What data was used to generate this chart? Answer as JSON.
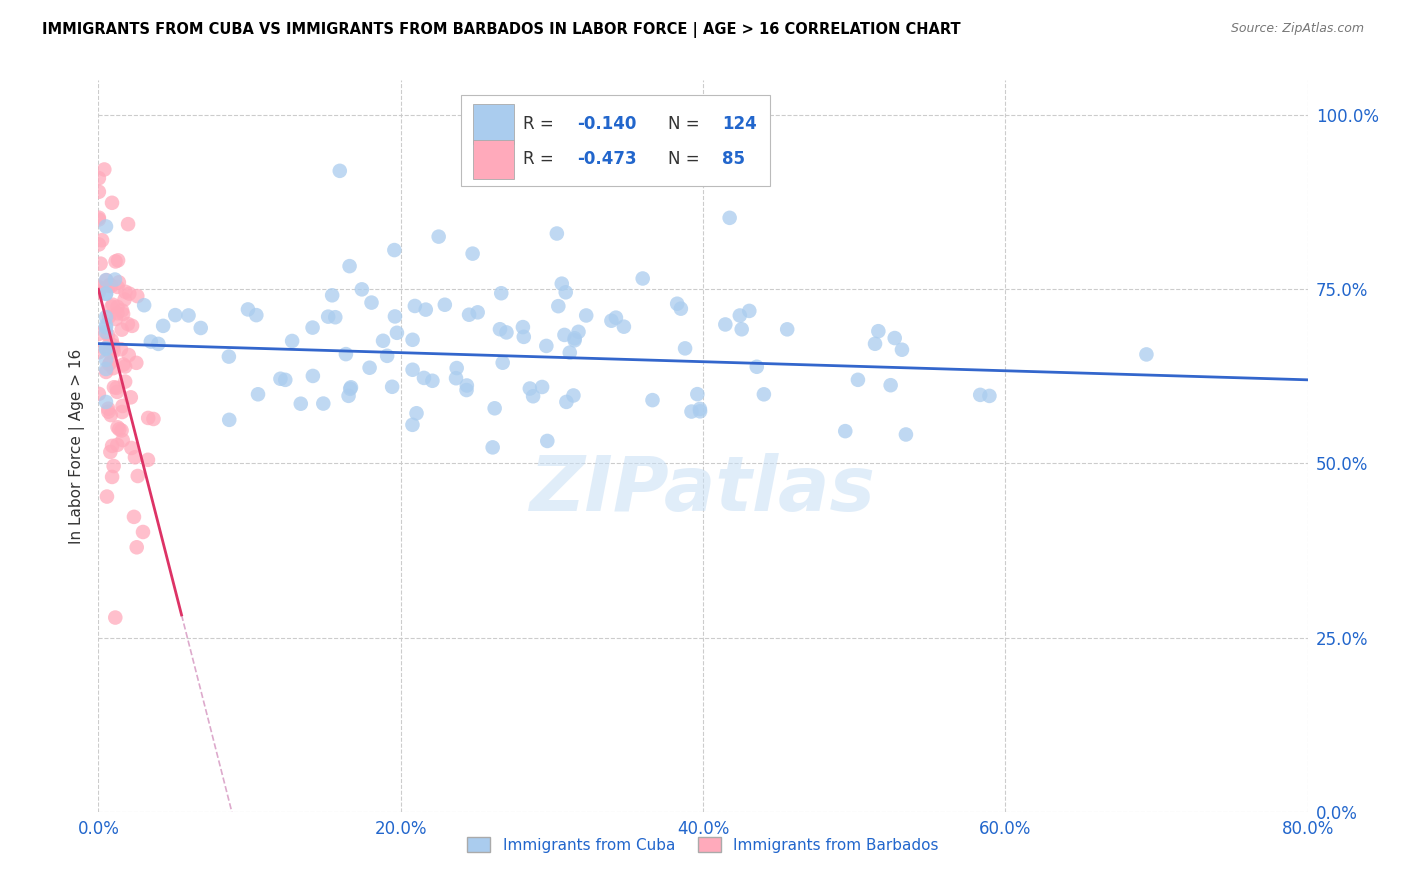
{
  "title": "IMMIGRANTS FROM CUBA VS IMMIGRANTS FROM BARBADOS IN LABOR FORCE | AGE > 16 CORRELATION CHART",
  "source": "Source: ZipAtlas.com",
  "ylabel": "In Labor Force | Age > 16",
  "legend_label1": "Immigrants from Cuba",
  "legend_label2": "Immigrants from Barbados",
  "R1": -0.14,
  "N1": 124,
  "R2": -0.473,
  "N2": 85,
  "color_cuba": "#aaccee",
  "color_barbados": "#ffaabb",
  "color_line_cuba": "#3366cc",
  "color_line_barbados": "#dd3366",
  "color_line_barbados_ext": "#ddaacc",
  "xlim": [
    0.0,
    0.8
  ],
  "ylim": [
    0.0,
    1.05
  ],
  "xtick_labels": [
    "0.0%",
    "20.0%",
    "40.0%",
    "60.0%",
    "80.0%"
  ],
  "xtick_vals": [
    0.0,
    0.2,
    0.4,
    0.6,
    0.8
  ],
  "ytick_vals": [
    0.0,
    0.25,
    0.5,
    0.75,
    1.0
  ],
  "ytick_labels_right": [
    "0.0%",
    "25.0%",
    "50.0%",
    "75.0%",
    "100.0%"
  ],
  "watermark": "ZIPatlas",
  "seed": 42
}
